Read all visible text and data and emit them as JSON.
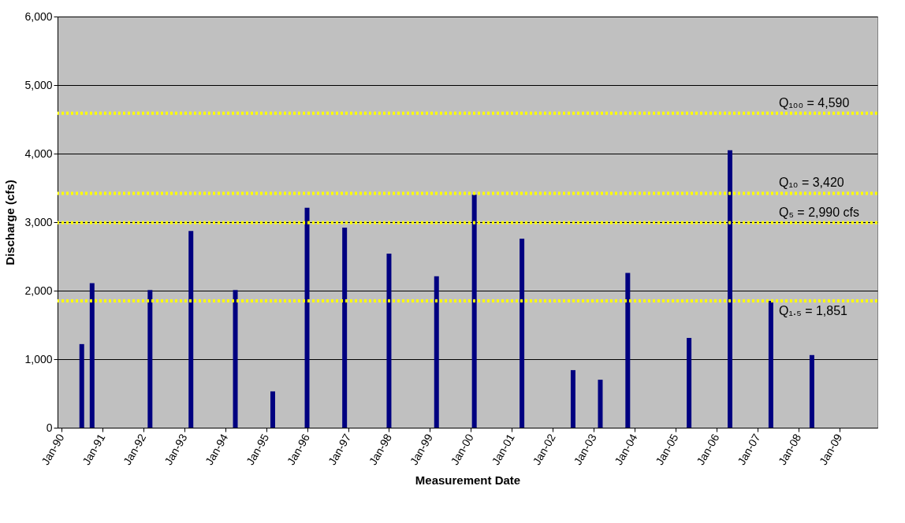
{
  "chart_data": {
    "type": "bar",
    "xlabel": "Measurement Date",
    "ylabel": "Discharge (cfs)",
    "x": [
      "1990-07",
      "1990-10",
      "1992-03",
      "1993-03",
      "1994-04",
      "1995-03",
      "1996-01",
      "1996-12",
      "1998-01",
      "1999-03",
      "2000-02",
      "2001-04",
      "2002-07",
      "2003-03",
      "2003-11",
      "2005-05",
      "2006-05",
      "2007-05",
      "2008-05"
    ],
    "series": [
      {
        "color": "#000080",
        "values": [
          1220,
          2110,
          2010,
          2870,
          2010,
          530,
          3210,
          2920,
          2540,
          2210,
          3400,
          2760,
          840,
          700,
          2260,
          1310,
          4050,
          1850,
          1060
        ]
      }
    ],
    "ylim": [
      0,
      6000
    ],
    "yticks": [
      0,
      {
        "value": 1000,
        "label": "1,000"
      },
      {
        "value": 2000,
        "label": "2,000"
      },
      {
        "value": 3000,
        "label": "3,000"
      },
      {
        "value": 4000,
        "label": "4,000"
      },
      {
        "value": 5000,
        "label": "5,000"
      },
      {
        "value": 6000,
        "label": "6,000"
      }
    ],
    "xlim": [
      "1990-01",
      "2009-11"
    ],
    "xticks": [
      {
        "value": "1990-01",
        "label": "Jan-90"
      },
      {
        "value": "1991-01",
        "label": "Jan-91"
      },
      {
        "value": "1992-01",
        "label": "Jan-92"
      },
      {
        "value": "1993-01",
        "label": "Jan-93"
      },
      {
        "value": "1994-01",
        "label": "Jan-94"
      },
      {
        "value": "1995-01",
        "label": "Jan-95"
      },
      {
        "value": "1996-01",
        "label": "Jan-96"
      },
      {
        "value": "1997-01",
        "label": "Jan-97"
      },
      {
        "value": "1998-01",
        "label": "Jan-98"
      },
      {
        "value": "1999-01",
        "label": "Jan-99"
      },
      {
        "value": "2000-01",
        "label": "Jan-00"
      },
      {
        "value": "2001-01",
        "label": "Jan-01"
      },
      {
        "value": "2002-01",
        "label": "Jan-02"
      },
      {
        "value": "2003-01",
        "label": "Jan-03"
      },
      {
        "value": "2004-01",
        "label": "Jan-04"
      },
      {
        "value": "2005-01",
        "label": "Jan-05"
      },
      {
        "value": "2006-01",
        "label": "Jan-06"
      },
      {
        "value": "2007-01",
        "label": "Jan-07"
      },
      {
        "value": "2008-01",
        "label": "Jan-08"
      },
      {
        "value": "2009-01",
        "label": "Jan-09"
      }
    ],
    "grid": "y",
    "ref_lines": [
      {
        "axis": "y",
        "value": 4590,
        "label": "Q₁₀₀ = 4,590",
        "color": "#ffff00",
        "line_style": "dotted"
      },
      {
        "axis": "y",
        "value": 3420,
        "label": "Q₁₀ = 3,420",
        "color": "#ffff00",
        "line_style": "dotted"
      },
      {
        "axis": "y",
        "value": 2990,
        "label": "Q₅ = 2,990 cfs",
        "color": "#ffff00",
        "line_style": "dotted"
      },
      {
        "axis": "y",
        "value": 1851,
        "label": "Q₁.₅ = 1,851",
        "color": "#ffff00",
        "line_style": "dotted"
      }
    ]
  }
}
